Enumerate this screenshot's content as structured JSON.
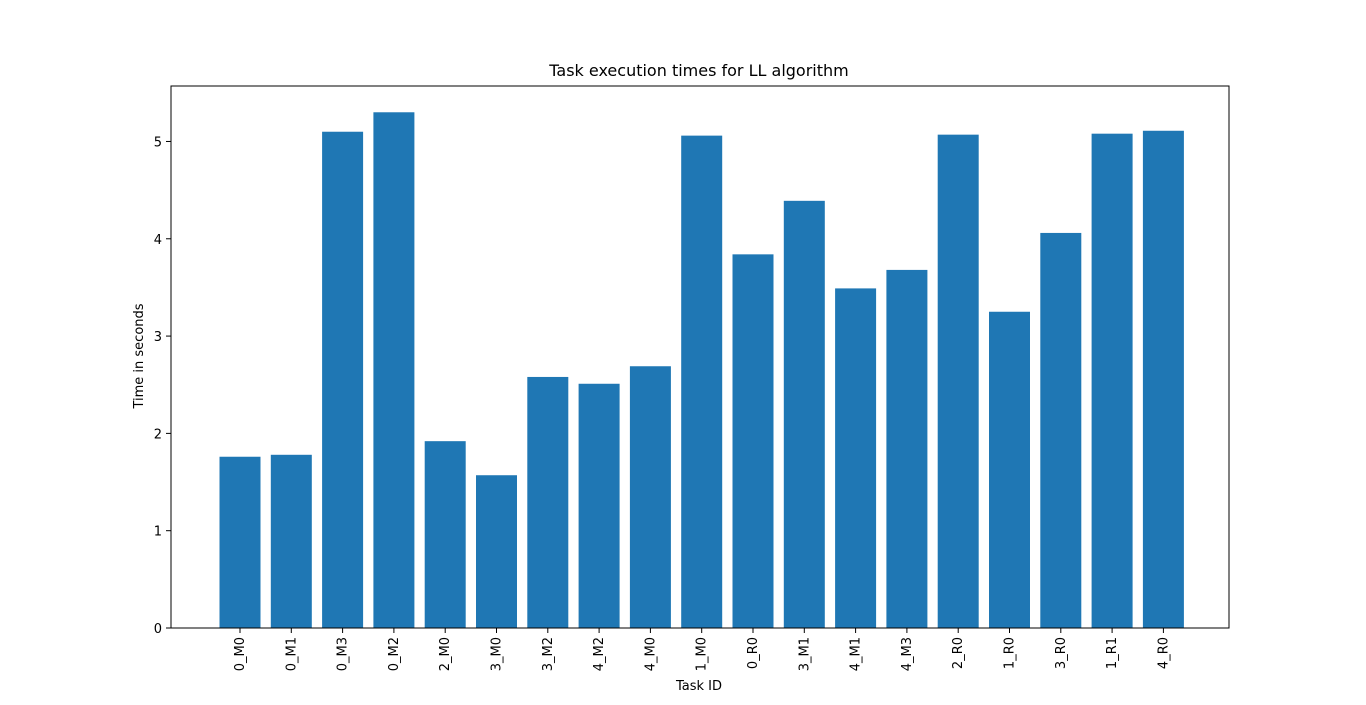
{
  "chart_data": {
    "type": "bar",
    "title": "Task execution times for LL algorithm",
    "xlabel": "Task ID",
    "ylabel": "Time in seconds",
    "categories": [
      "0_M0",
      "0_M1",
      "0_M3",
      "0_M2",
      "2_M0",
      "3_M0",
      "3_M2",
      "4_M2",
      "4_M0",
      "1_M0",
      "0_R0",
      "3_M1",
      "4_M1",
      "4_M3",
      "2_R0",
      "1_R0",
      "3_R0",
      "1_R1",
      "4_R0"
    ],
    "values": [
      1.76,
      1.78,
      5.1,
      5.3,
      1.92,
      1.57,
      2.58,
      2.51,
      2.69,
      5.06,
      3.84,
      4.39,
      3.49,
      3.68,
      5.07,
      3.25,
      4.06,
      5.08,
      5.11
    ],
    "ylim": [
      0,
      5.57
    ],
    "yticks": [
      0,
      1,
      2,
      3,
      4,
      5
    ],
    "bar_color": "#1f77b4",
    "grid": false,
    "legend": "none"
  }
}
